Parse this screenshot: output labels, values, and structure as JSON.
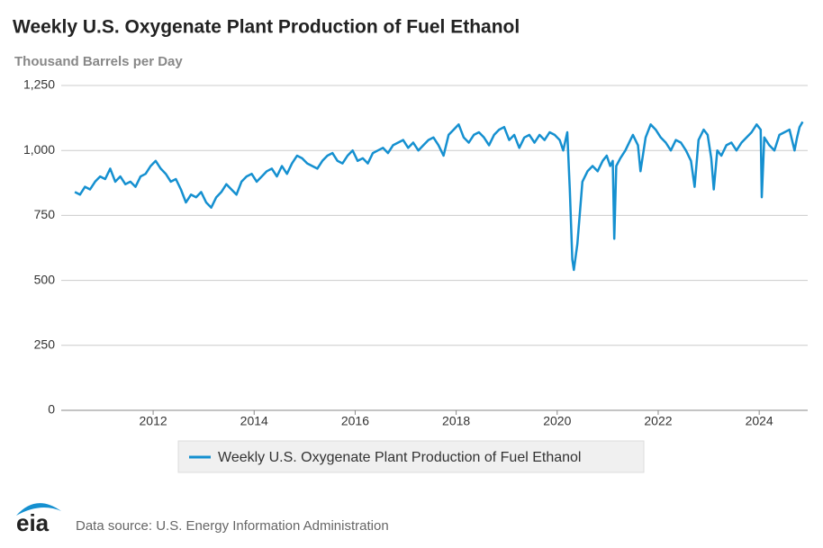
{
  "chart_data": {
    "type": "line",
    "title": "Weekly U.S. Oxygenate Plant Production of Fuel Ethanol",
    "y_label": "Thousand Barrels per Day",
    "source": "Data source: U.S. Energy Information Administration",
    "logo": "eia",
    "x": [
      2010.45,
      2010.55,
      2010.65,
      2010.75,
      2010.85,
      2010.95,
      2011.05,
      2011.15,
      2011.25,
      2011.35,
      2011.45,
      2011.55,
      2011.65,
      2011.75,
      2011.85,
      2011.95,
      2012.05,
      2012.15,
      2012.25,
      2012.35,
      2012.45,
      2012.55,
      2012.65,
      2012.75,
      2012.85,
      2012.95,
      2013.05,
      2013.15,
      2013.25,
      2013.35,
      2013.45,
      2013.55,
      2013.65,
      2013.75,
      2013.85,
      2013.95,
      2014.05,
      2014.15,
      2014.25,
      2014.35,
      2014.45,
      2014.55,
      2014.65,
      2014.75,
      2014.85,
      2014.95,
      2015.05,
      2015.15,
      2015.25,
      2015.35,
      2015.45,
      2015.55,
      2015.65,
      2015.75,
      2015.85,
      2015.95,
      2016.05,
      2016.15,
      2016.25,
      2016.35,
      2016.45,
      2016.55,
      2016.65,
      2016.75,
      2016.85,
      2016.95,
      2017.05,
      2017.15,
      2017.25,
      2017.35,
      2017.45,
      2017.55,
      2017.65,
      2017.75,
      2017.85,
      2017.95,
      2018.05,
      2018.15,
      2018.25,
      2018.35,
      2018.45,
      2018.55,
      2018.65,
      2018.75,
      2018.85,
      2018.95,
      2019.05,
      2019.15,
      2019.25,
      2019.35,
      2019.45,
      2019.55,
      2019.65,
      2019.75,
      2019.85,
      2019.95,
      2020.05,
      2020.12,
      2020.2,
      2020.25,
      2020.3,
      2020.33,
      2020.4,
      2020.5,
      2020.6,
      2020.7,
      2020.8,
      2020.9,
      2020.98,
      2021.05,
      2021.1,
      2021.13,
      2021.17,
      2021.25,
      2021.35,
      2021.45,
      2021.5,
      2021.6,
      2021.65,
      2021.75,
      2021.85,
      2021.95,
      2022.05,
      2022.15,
      2022.25,
      2022.35,
      2022.45,
      2022.55,
      2022.65,
      2022.72,
      2022.8,
      2022.9,
      2022.98,
      2023.05,
      2023.1,
      2023.17,
      2023.25,
      2023.35,
      2023.45,
      2023.55,
      2023.65,
      2023.75,
      2023.85,
      2023.95,
      2024.03,
      2024.05,
      2024.1,
      2024.2,
      2024.3,
      2024.4,
      2024.5,
      2024.6,
      2024.7,
      2024.75,
      2024.8,
      2024.86
    ],
    "series": [
      {
        "name": "Weekly U.S. Oxygenate Plant Production of Fuel Ethanol",
        "color": "#1590d0",
        "values": [
          840,
          830,
          860,
          850,
          880,
          900,
          890,
          930,
          880,
          900,
          870,
          880,
          860,
          900,
          910,
          940,
          960,
          930,
          910,
          880,
          890,
          850,
          800,
          830,
          820,
          840,
          800,
          780,
          820,
          840,
          870,
          850,
          830,
          880,
          900,
          910,
          880,
          900,
          920,
          930,
          900,
          940,
          910,
          950,
          980,
          970,
          950,
          940,
          930,
          960,
          980,
          990,
          960,
          950,
          980,
          1000,
          960,
          970,
          950,
          990,
          1000,
          1010,
          990,
          1020,
          1030,
          1040,
          1010,
          1030,
          1000,
          1020,
          1040,
          1050,
          1020,
          980,
          1060,
          1080,
          1100,
          1050,
          1030,
          1060,
          1070,
          1050,
          1020,
          1060,
          1080,
          1090,
          1040,
          1060,
          1010,
          1050,
          1060,
          1030,
          1060,
          1040,
          1070,
          1060,
          1040,
          1000,
          1070,
          850,
          580,
          540,
          640,
          880,
          920,
          940,
          920,
          960,
          980,
          940,
          960,
          660,
          940,
          970,
          1000,
          1040,
          1060,
          1020,
          920,
          1050,
          1100,
          1080,
          1050,
          1030,
          1000,
          1040,
          1030,
          1000,
          960,
          860,
          1040,
          1080,
          1060,
          970,
          850,
          1000,
          980,
          1020,
          1030,
          1000,
          1030,
          1050,
          1070,
          1100,
          1080,
          820,
          1050,
          1020,
          1000,
          1060,
          1070,
          1080,
          1000,
          1050,
          1090,
          1110
        ]
      }
    ],
    "xlim": [
      2010.18,
      2024.96
    ],
    "xticks": [
      2012,
      2014,
      2016,
      2018,
      2020,
      2022,
      2024
    ],
    "ylim": [
      0,
      1250
    ],
    "yticks": [
      0,
      250,
      500,
      750,
      {
        "value": 1000,
        "label": "1,000"
      },
      {
        "value": 1250,
        "label": "1,250"
      }
    ],
    "grid": true
  }
}
